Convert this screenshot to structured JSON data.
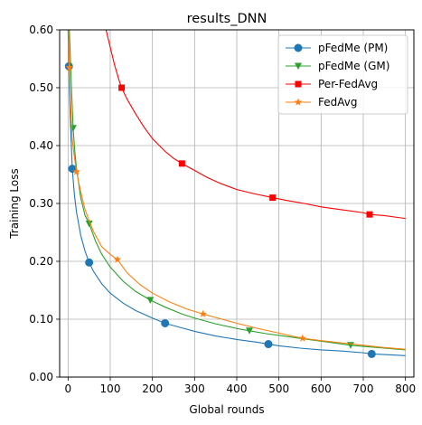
{
  "chart_data": {
    "type": "line",
    "title": "results_DNN",
    "xlabel": "Global rounds",
    "ylabel": "Training Loss",
    "xlim": [
      -20,
      820
    ],
    "ylim": [
      0.0,
      0.6
    ],
    "xticks": [
      0,
      100,
      200,
      300,
      400,
      500,
      600,
      700,
      800
    ],
    "yticks": [
      0.0,
      0.1,
      0.2,
      0.3,
      0.4,
      0.5,
      0.6
    ],
    "ytick_labels": [
      "0.00",
      "0.10",
      "0.20",
      "0.30",
      "0.40",
      "0.50",
      "0.60"
    ],
    "grid": true,
    "legend_position": "top-right",
    "series": [
      {
        "name": "pFedMe (PM)",
        "color": "#1f77b4",
        "marker": "circle",
        "x": [
          0,
          2,
          5,
          10,
          15,
          20,
          30,
          40,
          50,
          60,
          80,
          100,
          130,
          160,
          200,
          230,
          270,
          300,
          350,
          400,
          450,
          475,
          500,
          550,
          600,
          650,
          700,
          720,
          750,
          800
        ],
        "y": [
          0.6,
          0.537,
          0.45,
          0.36,
          0.315,
          0.285,
          0.245,
          0.218,
          0.198,
          0.183,
          0.161,
          0.145,
          0.128,
          0.115,
          0.102,
          0.093,
          0.085,
          0.079,
          0.071,
          0.065,
          0.06,
          0.057,
          0.054,
          0.05,
          0.047,
          0.045,
          0.042,
          0.04,
          0.039,
          0.037
        ],
        "marker_x": [
          2,
          10,
          50,
          230,
          475,
          720
        ],
        "marker_y": [
          0.537,
          0.36,
          0.198,
          0.093,
          0.057,
          0.04
        ]
      },
      {
        "name": "pFedMe (GM)",
        "color": "#2ca02c",
        "marker": "triangle-down",
        "x": [
          3,
          8,
          12,
          16,
          20,
          30,
          40,
          50,
          65,
          80,
          100,
          130,
          160,
          195,
          230,
          270,
          300,
          350,
          400,
          430,
          470,
          520,
          570,
          620,
          670,
          700,
          750,
          800
        ],
        "y": [
          0.6,
          0.5,
          0.43,
          0.39,
          0.36,
          0.31,
          0.28,
          0.265,
          0.235,
          0.212,
          0.19,
          0.166,
          0.148,
          0.133,
          0.121,
          0.109,
          0.102,
          0.092,
          0.084,
          0.08,
          0.075,
          0.07,
          0.065,
          0.06,
          0.055,
          0.053,
          0.05,
          0.047
        ],
        "marker_x": [
          12,
          50,
          195,
          430,
          670
        ],
        "marker_y": [
          0.43,
          0.265,
          0.133,
          0.08,
          0.055
        ]
      },
      {
        "name": "Per-FedAvg",
        "color": "#ff0000",
        "marker": "square",
        "x": [
          90,
          100,
          110,
          120,
          127,
          140,
          160,
          180,
          200,
          230,
          250,
          270,
          300,
          330,
          360,
          400,
          440,
          485,
          520,
          560,
          600,
          650,
          700,
          715,
          750,
          780,
          800
        ],
        "y": [
          0.6,
          0.57,
          0.54,
          0.515,
          0.5,
          0.48,
          0.455,
          0.432,
          0.412,
          0.39,
          0.378,
          0.369,
          0.357,
          0.345,
          0.335,
          0.324,
          0.317,
          0.31,
          0.305,
          0.3,
          0.294,
          0.289,
          0.284,
          0.281,
          0.279,
          0.276,
          0.274
        ],
        "marker_x": [
          127,
          270,
          485,
          715
        ],
        "marker_y": [
          0.5,
          0.369,
          0.31,
          0.281
        ]
      },
      {
        "name": "FedAvg",
        "color": "#ff7f0e",
        "marker": "star",
        "x": [
          1,
          3,
          6,
          10,
          15,
          20,
          30,
          40,
          50,
          60,
          80,
          100,
          117,
          140,
          170,
          200,
          240,
          280,
          320,
          360,
          400,
          450,
          500,
          556,
          600,
          650,
          700,
          750,
          800
        ],
        "y": [
          0.6,
          0.535,
          0.47,
          0.41,
          0.38,
          0.355,
          0.32,
          0.29,
          0.27,
          0.252,
          0.225,
          0.212,
          0.203,
          0.18,
          0.16,
          0.145,
          0.13,
          0.118,
          0.109,
          0.101,
          0.093,
          0.084,
          0.076,
          0.067,
          0.063,
          0.059,
          0.055,
          0.051,
          0.048
        ],
        "marker_x": [
          3,
          20,
          117,
          320,
          556
        ],
        "marker_y": [
          0.535,
          0.355,
          0.203,
          0.109,
          0.067
        ]
      }
    ]
  }
}
